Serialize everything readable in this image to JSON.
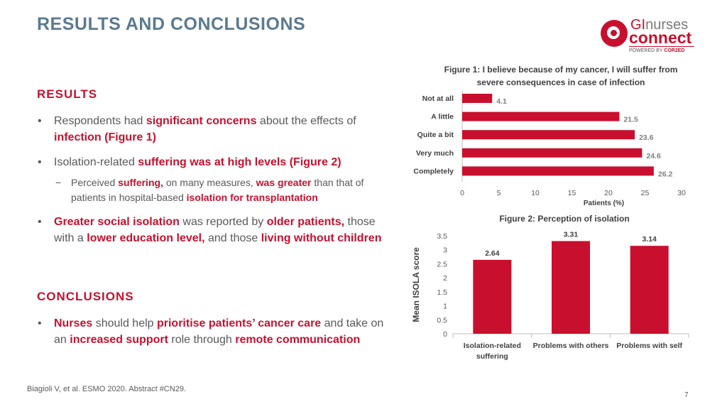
{
  "title": "RESULTS AND CONCLUSIONS",
  "logo": {
    "gi": "GI",
    "nurses": "nurses",
    "connect": "connect",
    "powered_prefix": "POWERED BY ",
    "powered_brand": "COR2ED"
  },
  "results": {
    "heading": "RESULTS",
    "b1": {
      "t1": "Respondents had ",
      "h1": "significant concerns",
      "t2": " about the effects of ",
      "h2": "infection (Figure 1)"
    },
    "b2": {
      "t1": "Isolation-related ",
      "h1": "suffering was at high levels (Figure 2)"
    },
    "sub": {
      "t1": "Perceived ",
      "h1": "suffering,",
      "t2": " on many measures, ",
      "h2": "was greater",
      "t3": " than that of patients in hospital-based ",
      "h3": "isolation for transplantation"
    },
    "b3": {
      "h1": "Greater social isolation",
      "t1": " was reported by ",
      "h2": "older patients,",
      "t2": " those with a ",
      "h3": "lower education level,",
      "t3": " and those ",
      "h4": "living without children"
    }
  },
  "conclusions": {
    "heading": "CONCLUSIONS",
    "b1": {
      "h1": "Nurses",
      "t1": " should help ",
      "h2": "prioritise patients’ cancer care",
      "t2": " and take on an ",
      "h3": "increased support",
      "t3": " role through ",
      "h4": "remote communication"
    }
  },
  "footer": "Biagioli V, et al. ESMO 2020. Abstract #CN29.",
  "page_number": "7",
  "colors": {
    "bar": "#c8102e",
    "accent": "#c8102e",
    "title": "#5b7a91",
    "text": "#595959"
  },
  "chart_data": [
    {
      "type": "bar",
      "orientation": "horizontal",
      "title_line1": "Figure 1: I believe because of my cancer, I will suffer from",
      "title_line2": "severe consequences in case of infection",
      "categories": [
        "Not at all",
        "A little",
        "Quite a bit",
        "Very much",
        "Completely"
      ],
      "values": [
        4.1,
        21.5,
        23.6,
        24.6,
        26.2
      ],
      "value_labels": [
        "4.1",
        "21.5",
        "23.6",
        "24.6",
        "26.2"
      ],
      "xlabel": "Patients (%)",
      "xlim": [
        0,
        30
      ],
      "ticks": [
        "0",
        "5",
        "10",
        "15",
        "20",
        "25",
        "30"
      ],
      "tick_values": [
        0,
        5,
        10,
        15,
        20,
        25,
        30
      ]
    },
    {
      "type": "bar",
      "orientation": "vertical",
      "title": "Figure 2: Perception of isolation",
      "categories": [
        "Isolation-related suffering",
        "Problems with others",
        "Problems with self"
      ],
      "category_lines": [
        [
          "Isolation-related",
          "suffering"
        ],
        [
          "Problems with others"
        ],
        [
          "Problems with self"
        ]
      ],
      "values": [
        2.64,
        3.31,
        3.14
      ],
      "value_labels": [
        "2.64",
        "3.31",
        "3.14"
      ],
      "ylabel": "Mean ISOLA score",
      "ylim": [
        0,
        3.5
      ],
      "ticks": [
        "0",
        "0.5",
        "1",
        "1.5",
        "2",
        "2.5",
        "3",
        "3.5"
      ],
      "tick_values": [
        0,
        0.5,
        1,
        1.5,
        2,
        2.5,
        3,
        3.5
      ]
    }
  ]
}
